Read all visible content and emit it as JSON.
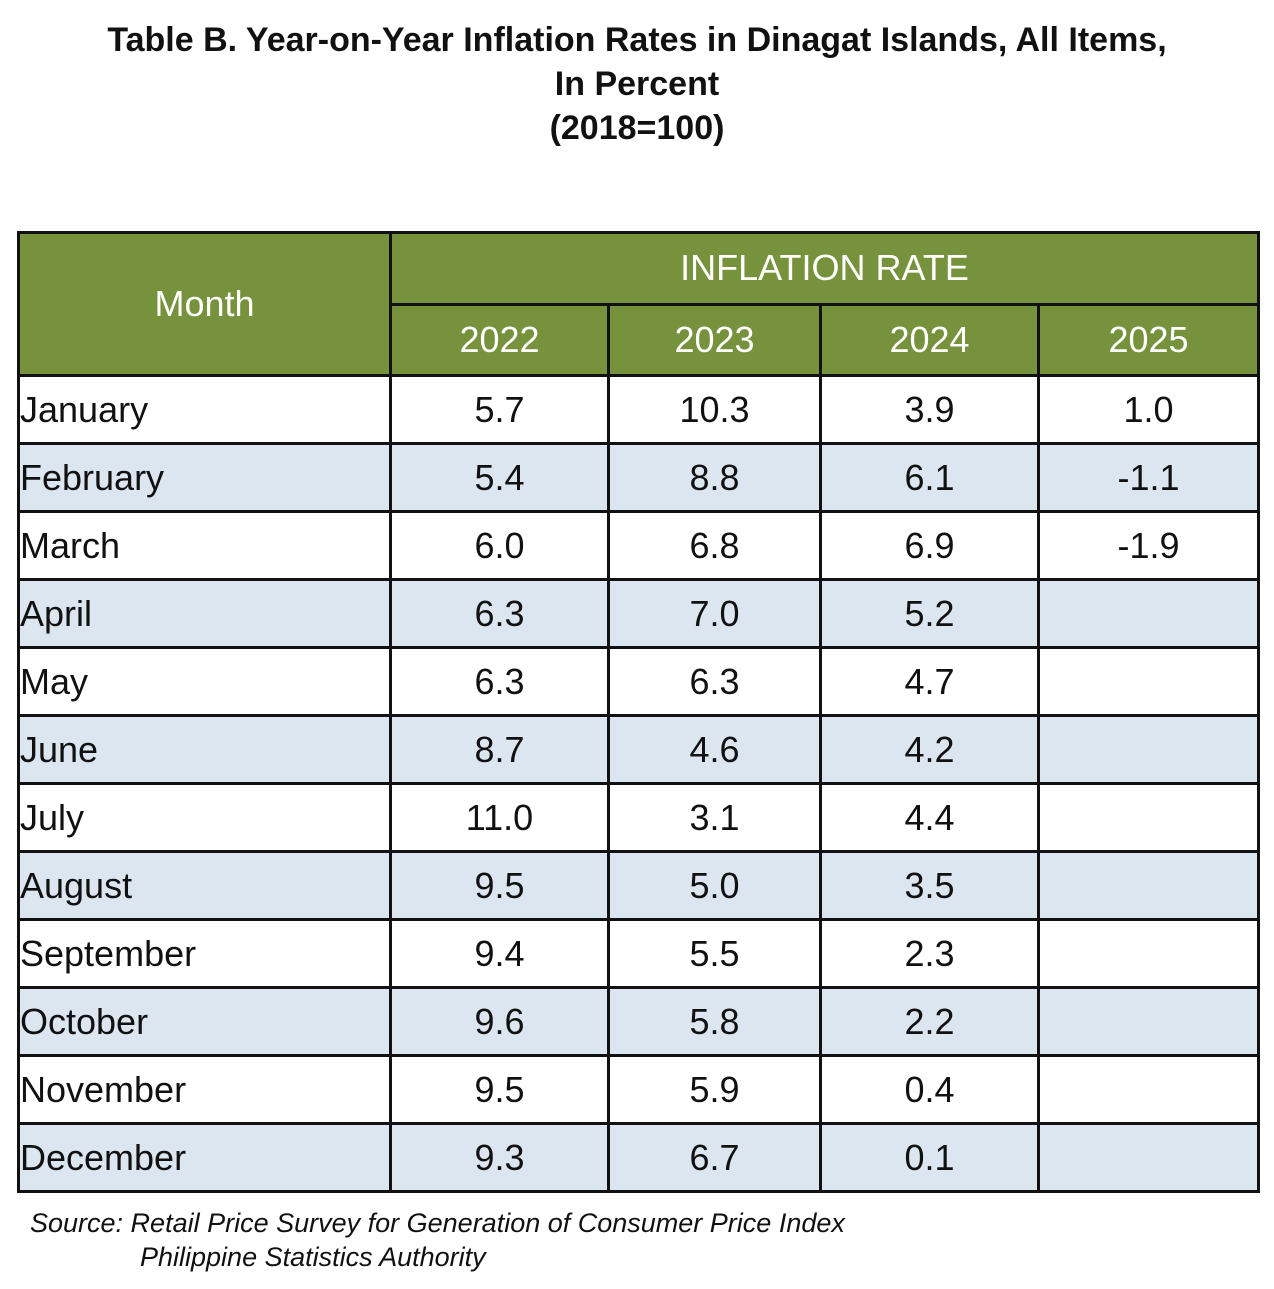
{
  "title": {
    "line1": "Table B. Year-on-Year Inflation Rates in Dinagat Islands, All Items,",
    "line2": "In Percent",
    "line3": "(2018=100)"
  },
  "table": {
    "month_header": "Month",
    "group_header": "INFLATION RATE",
    "years": [
      "2022",
      "2023",
      "2024",
      "2025"
    ],
    "rows": [
      {
        "month": "January",
        "values": [
          "5.7",
          "10.3",
          "3.9",
          "1.0"
        ]
      },
      {
        "month": "February",
        "values": [
          "5.4",
          "8.8",
          "6.1",
          "-1.1"
        ]
      },
      {
        "month": "March",
        "values": [
          "6.0",
          "6.8",
          "6.9",
          "-1.9"
        ]
      },
      {
        "month": "April",
        "values": [
          "6.3",
          "7.0",
          "5.2",
          ""
        ]
      },
      {
        "month": "May",
        "values": [
          "6.3",
          "6.3",
          "4.7",
          ""
        ]
      },
      {
        "month": "June",
        "values": [
          "8.7",
          "4.6",
          "4.2",
          ""
        ]
      },
      {
        "month": "July",
        "values": [
          "11.0",
          "3.1",
          "4.4",
          ""
        ]
      },
      {
        "month": "August",
        "values": [
          "9.5",
          "5.0",
          "3.5",
          ""
        ]
      },
      {
        "month": "September",
        "values": [
          "9.4",
          "5.5",
          "2.3",
          ""
        ]
      },
      {
        "month": "October",
        "values": [
          "9.6",
          "5.8",
          "2.2",
          ""
        ]
      },
      {
        "month": "November",
        "values": [
          "9.5",
          "5.9",
          "0.4",
          ""
        ]
      },
      {
        "month": "December",
        "values": [
          "9.3",
          "6.7",
          "0.1",
          ""
        ]
      }
    ]
  },
  "source": {
    "line1": "Source: Retail Price Survey for Generation of Consumer Price Index",
    "line2": "Philippine Statistics Authority"
  },
  "colors": {
    "header_bg": "#76923c",
    "header_text": "#ffffff",
    "shaded_row_bg": "#dce6f1",
    "border": "#111111"
  },
  "chart_data": {
    "type": "table",
    "title": "Table B. Year-on-Year Inflation Rates in Dinagat Islands, All Items, In Percent (2018=100)",
    "columns": [
      "Month",
      "2022",
      "2023",
      "2024",
      "2025"
    ],
    "categories": [
      "January",
      "February",
      "March",
      "April",
      "May",
      "June",
      "July",
      "August",
      "September",
      "October",
      "November",
      "December"
    ],
    "series": [
      {
        "name": "2022",
        "values": [
          5.7,
          5.4,
          6.0,
          6.3,
          6.3,
          8.7,
          11.0,
          9.5,
          9.4,
          9.6,
          9.5,
          9.3
        ]
      },
      {
        "name": "2023",
        "values": [
          10.3,
          8.8,
          6.8,
          7.0,
          6.3,
          4.6,
          3.1,
          5.0,
          5.5,
          5.8,
          5.9,
          6.7
        ]
      },
      {
        "name": "2024",
        "values": [
          3.9,
          6.1,
          6.9,
          5.2,
          4.7,
          4.2,
          4.4,
          3.5,
          2.3,
          2.2,
          0.4,
          0.1
        ]
      },
      {
        "name": "2025",
        "values": [
          1.0,
          -1.1,
          -1.9,
          null,
          null,
          null,
          null,
          null,
          null,
          null,
          null,
          null
        ]
      }
    ]
  }
}
